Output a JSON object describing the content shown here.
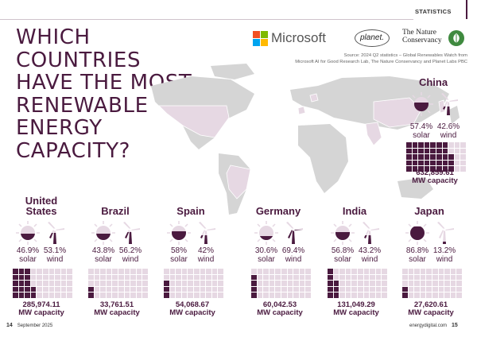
{
  "header": {
    "section": "STATISTICS"
  },
  "headline": [
    "WHICH",
    "COUNTRIES",
    "HAVE THE MOST",
    "RENEWABLE",
    "ENERGY",
    "CAPACITY?"
  ],
  "logos": {
    "microsoft": "Microsoft",
    "planet": "planet.",
    "tnc": [
      "The Nature",
      "Conservancy"
    ]
  },
  "source": [
    "Source: 2024 Q2 statistics – Global Renewables Watch from",
    "Microsoft AI for Good Research Lab, The Nature Conservancy and Planet Labs PBC"
  ],
  "colors": {
    "primary": "#4a1a3f",
    "light": "#e6d8e3",
    "map": "#d5d5d5"
  },
  "countries": [
    {
      "name": "China",
      "solar_pct": "57.4%",
      "wind_pct": "42.6%",
      "solar_label": "solar",
      "wind_label": "wind",
      "capacity": "632,859.61",
      "capacity_label": "MW capacity",
      "solar_share": 0.574,
      "grid_fill": 38
    },
    {
      "name": "United States",
      "solar_pct": "46.9%",
      "wind_pct": "53.1%",
      "solar_label": "solar",
      "wind_label": "wind",
      "capacity": "285,974.11",
      "capacity_label": "MW capacity",
      "solar_share": 0.469,
      "grid_fill": 17
    },
    {
      "name": "Brazil",
      "solar_pct": "43.8%",
      "wind_pct": "56.2%",
      "solar_label": "solar",
      "wind_label": "wind",
      "capacity": "33,761.51",
      "capacity_label": "MW capacity",
      "solar_share": 0.438,
      "grid_fill": 2
    },
    {
      "name": "Spain",
      "solar_pct": "58%",
      "wind_pct": "42%",
      "solar_label": "solar",
      "wind_label": "wind",
      "capacity": "54,068.67",
      "capacity_label": "MW capacity",
      "solar_share": 0.58,
      "grid_fill": 3
    },
    {
      "name": "Germany",
      "solar_pct": "30.6%",
      "wind_pct": "69.4%",
      "solar_label": "solar",
      "wind_label": "wind",
      "capacity": "60,042.53",
      "capacity_label": "MW capacity",
      "solar_share": 0.306,
      "grid_fill": 4
    },
    {
      "name": "India",
      "solar_pct": "56.8%",
      "wind_pct": "43.2%",
      "solar_label": "solar",
      "wind_label": "wind",
      "capacity": "131,049.29",
      "capacity_label": "MW capacity",
      "solar_share": 0.568,
      "grid_fill": 8
    },
    {
      "name": "Japan",
      "solar_pct": "86.8%",
      "wind_pct": "13.2%",
      "solar_label": "solar",
      "wind_label": "wind",
      "capacity": "27,620.61",
      "capacity_label": "MW capacity",
      "solar_share": 0.868,
      "grid_fill": 2
    }
  ],
  "footer": {
    "left_page": "14",
    "left_text": "September 2025",
    "right_text": "energydigital.com",
    "right_page": "15"
  }
}
